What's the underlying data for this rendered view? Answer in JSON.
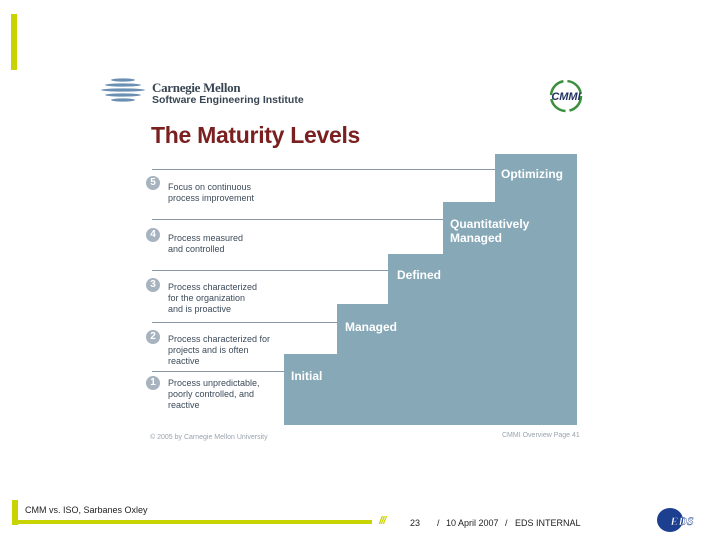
{
  "header": {
    "org_line1": "Carnegie Mellon",
    "org_line2": "Software Engineering Institute",
    "cmmi_logo_text": "CMMI",
    "title": "The Maturity Levels"
  },
  "levels": [
    {
      "number": "5",
      "name": "Optimizing",
      "desc": [
        "Focus on continuous",
        "process improvement"
      ]
    },
    {
      "number": "4",
      "name": "Quantitatively Managed",
      "desc": [
        "Process measured",
        "and controlled"
      ]
    },
    {
      "number": "3",
      "name": "Defined",
      "desc": [
        "Process characterized",
        "for the organization",
        "and is proactive"
      ]
    },
    {
      "number": "2",
      "name": "Managed",
      "desc": [
        "Process characterized for",
        "projects and is often",
        "reactive"
      ]
    },
    {
      "number": "1",
      "name": "Initial",
      "desc": [
        "Process unpredictable,",
        "poorly controlled, and",
        "reactive"
      ]
    }
  ],
  "slide_footer": {
    "copyright": "© 2005 by Carnegie Mellon University",
    "page_ref": "CMMI Overview Page 41"
  },
  "footer": {
    "title": "CMM vs. ISO, Sarbanes Oxley",
    "slashes": "///",
    "page_number": "23",
    "separator": "/",
    "date": "10 April 2007",
    "classification": "EDS INTERNAL",
    "logo_text": "EDS"
  },
  "colors": {
    "accent": "#c8d400",
    "stairs": "#86a8b7",
    "title": "#7a2020",
    "eds_blue": "#1d3f8f"
  }
}
